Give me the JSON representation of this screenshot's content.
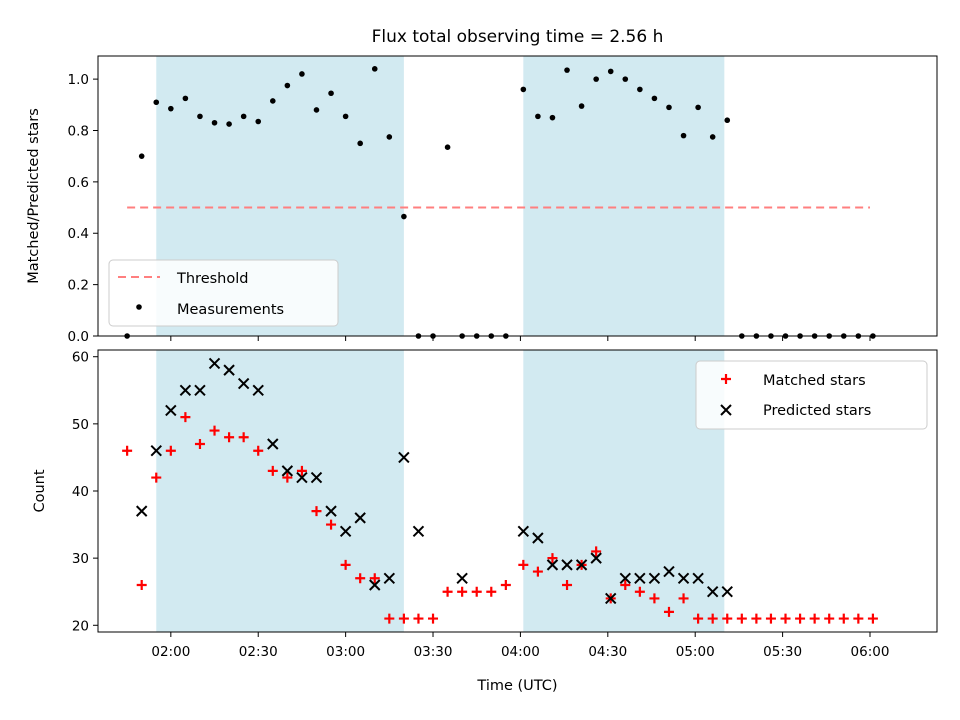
{
  "figure": {
    "title": "Flux total observing time = 2.56 h",
    "xlabel": "Time (UTC)",
    "x_ticks": [
      "02:00",
      "02:30",
      "03:00",
      "03:30",
      "04:00",
      "04:30",
      "05:00",
      "05:30",
      "06:00"
    ]
  },
  "colors": {
    "shade": "#add8e6",
    "threshold": "#ff7f7f",
    "matched": "#ff0000",
    "predicted": "#000000",
    "measurement": "#000000"
  },
  "chart_data": [
    {
      "type": "scatter",
      "panel": "top",
      "ylabel": "Matched/Predicted stars",
      "y_ticks": [
        "0.0",
        "0.2",
        "0.4",
        "0.6",
        "0.8",
        "1.0"
      ],
      "ylim": [
        0,
        1.09
      ],
      "xlim": [
        "01:35",
        "06:23"
      ],
      "shaded_intervals": [
        [
          "01:55",
          "03:20"
        ],
        [
          "04:01",
          "05:10"
        ]
      ],
      "threshold": {
        "name": "Threshold",
        "value": 0.5,
        "x_range": [
          "01:45",
          "06:00"
        ]
      },
      "series": [
        {
          "name": "Measurements",
          "x": [
            "01:45",
            "01:50",
            "01:55",
            "02:00",
            "02:05",
            "02:10",
            "02:15",
            "02:20",
            "02:25",
            "02:30",
            "02:35",
            "02:40",
            "02:45",
            "02:50",
            "02:55",
            "03:00",
            "03:05",
            "03:10",
            "03:15",
            "03:20",
            "03:25",
            "03:30",
            "03:35",
            "03:40",
            "03:45",
            "03:50",
            "03:55",
            "04:01",
            "04:06",
            "04:11",
            "04:16",
            "04:21",
            "04:26",
            "04:31",
            "04:36",
            "04:41",
            "04:46",
            "04:51",
            "04:56",
            "05:01",
            "05:06",
            "05:11",
            "05:16",
            "05:21",
            "05:26",
            "05:31",
            "05:36",
            "05:41",
            "05:46",
            "05:51",
            "05:56",
            "06:01"
          ],
          "values": [
            0.0,
            0.7,
            0.91,
            0.885,
            0.925,
            0.855,
            0.83,
            0.825,
            0.855,
            0.835,
            0.915,
            0.975,
            1.02,
            0.88,
            0.945,
            0.855,
            0.75,
            1.04,
            0.775,
            0.465,
            0.0,
            0.0,
            0.735,
            0.0,
            0.0,
            0.0,
            0.0,
            0.96,
            0.855,
            0.85,
            1.035,
            0.895,
            1.0,
            1.03,
            1.0,
            0.96,
            0.925,
            0.89,
            0.78,
            0.89,
            0.775,
            0.84,
            0.0,
            0.0,
            0.0,
            0.0,
            0.0,
            0.0,
            0.0,
            0.0,
            0.0,
            0.0
          ]
        }
      ],
      "legend": [
        "Threshold",
        "Measurements"
      ],
      "legend_position": "lower-left"
    },
    {
      "type": "scatter",
      "panel": "bottom",
      "ylabel": "Count",
      "y_ticks": [
        "20",
        "30",
        "40",
        "50",
        "60"
      ],
      "ylim": [
        19,
        61
      ],
      "xlim": [
        "01:35",
        "06:23"
      ],
      "shaded_intervals": [
        [
          "01:55",
          "03:20"
        ],
        [
          "04:01",
          "05:10"
        ]
      ],
      "series": [
        {
          "name": "Matched stars",
          "x": [
            "01:45",
            "01:50",
            "01:55",
            "02:00",
            "02:05",
            "02:10",
            "02:15",
            "02:20",
            "02:25",
            "02:30",
            "02:35",
            "02:40",
            "02:45",
            "02:50",
            "02:55",
            "03:00",
            "03:05",
            "03:10",
            "03:15",
            "03:20",
            "03:25",
            "03:30",
            "03:35",
            "03:40",
            "03:45",
            "03:50",
            "03:55",
            "04:01",
            "04:06",
            "04:11",
            "04:16",
            "04:21",
            "04:26",
            "04:31",
            "04:36",
            "04:41",
            "04:46",
            "04:51",
            "04:56",
            "05:01",
            "05:06",
            "05:11",
            "05:16",
            "05:21",
            "05:26",
            "05:31",
            "05:36",
            "05:41",
            "05:46",
            "05:51",
            "05:56",
            "06:01"
          ],
          "values": [
            46,
            26,
            42,
            46,
            51,
            47,
            49,
            48,
            48,
            46,
            43,
            42,
            43,
            37,
            35,
            29,
            27,
            27,
            21,
            21,
            21,
            21,
            25,
            25,
            25,
            25,
            26,
            29,
            28,
            30,
            26,
            29,
            31,
            24,
            26,
            25,
            24,
            22,
            24,
            21,
            21,
            21,
            21,
            21,
            21,
            21,
            21,
            21,
            21,
            21,
            21,
            21
          ]
        },
        {
          "name": "Predicted stars",
          "x": [
            "01:50",
            "01:55",
            "02:00",
            "02:05",
            "02:10",
            "02:15",
            "02:20",
            "02:25",
            "02:30",
            "02:35",
            "02:40",
            "02:45",
            "02:50",
            "02:55",
            "03:00",
            "03:05",
            "03:10",
            "03:15",
            "03:20",
            "03:25",
            "03:40",
            "04:01",
            "04:06",
            "04:11",
            "04:16",
            "04:21",
            "04:26",
            "04:31",
            "04:36",
            "04:41",
            "04:46",
            "04:51",
            "04:56",
            "05:01",
            "05:06",
            "05:11"
          ],
          "values": [
            37,
            46,
            52,
            55,
            55,
            59,
            58,
            56,
            55,
            47,
            43,
            42,
            42,
            37,
            34,
            36,
            26,
            27,
            45,
            34,
            27,
            34,
            33,
            29,
            29,
            29,
            30,
            24,
            27,
            27,
            27,
            28,
            27,
            27,
            25,
            25
          ]
        }
      ],
      "legend": [
        "Matched stars",
        "Predicted stars"
      ],
      "legend_position": "upper-right"
    }
  ]
}
